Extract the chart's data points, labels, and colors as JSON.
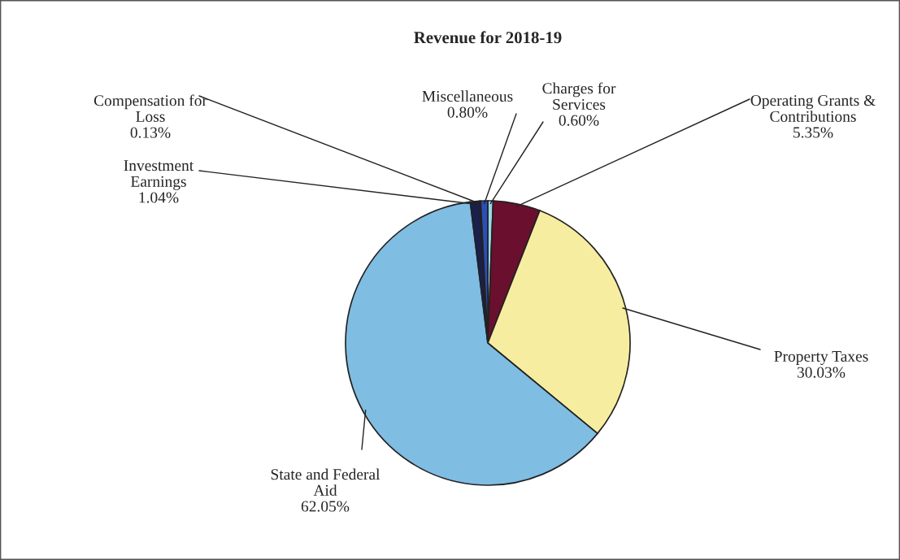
{
  "chart_data": {
    "type": "pie",
    "title": "Revenue for 2018-19",
    "categories": [
      "Charges for\nServices",
      "Operating Grants &\nContributions",
      "Property Taxes",
      "State and Federal\nAid",
      "Investment\nEarnings",
      "Compensation for\nLoss",
      "Miscellaneous"
    ],
    "values": [
      0.6,
      5.35,
      30.03,
      62.05,
      1.04,
      0.13,
      0.8
    ],
    "value_labels": [
      "0.60%",
      "5.35%",
      "30.03%",
      "62.05%",
      "1.04%",
      "0.13%",
      "0.80%"
    ],
    "colors": [
      "#9fd6e6",
      "#6b0f2e",
      "#f6eda0",
      "#7fbde3",
      "#1a1f4d",
      "#4a1a5a",
      "#2b4fb8"
    ],
    "legend": false
  }
}
